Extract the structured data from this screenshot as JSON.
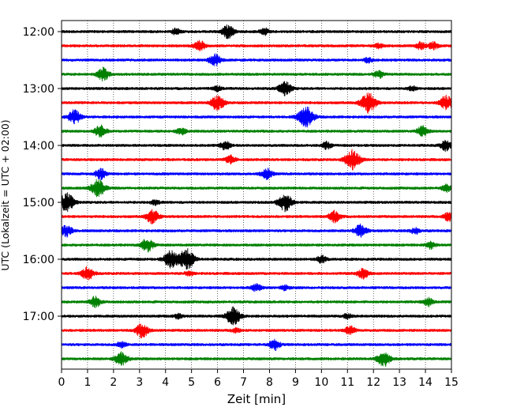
{
  "chart_data": {
    "type": "line",
    "subtype": "helicorder",
    "title": "",
    "xlabel": "Zeit  [min]",
    "ylabel": "UTC (Lokalzeit = UTC + 02:00)",
    "xlim": [
      0,
      15
    ],
    "x_ticks": [
      "0",
      "1",
      "2",
      "3",
      "4",
      "5",
      "6",
      "7",
      "8",
      "9",
      "10",
      "11",
      "12",
      "13",
      "14",
      "15"
    ],
    "y_ticks": [
      "12:00",
      "13:00",
      "14:00",
      "15:00",
      "16:00",
      "17:00"
    ],
    "grid": "vertical dotted",
    "trace_interval_min": 15,
    "trace_colors": [
      "#000000",
      "#ff0000",
      "#0000ff",
      "#008000"
    ],
    "traces": [
      {
        "start": "12:00",
        "events": [
          [
            4.4,
            0.25
          ],
          [
            6.4,
            0.55
          ],
          [
            7.8,
            0.3
          ]
        ]
      },
      {
        "start": "12:15",
        "events": [
          [
            5.3,
            0.45
          ],
          [
            12.2,
            0.2
          ],
          [
            13.8,
            0.3
          ],
          [
            14.3,
            0.3
          ]
        ]
      },
      {
        "start": "12:30",
        "events": [
          [
            5.9,
            0.5
          ],
          [
            11.8,
            0.2
          ]
        ]
      },
      {
        "start": "12:45",
        "events": [
          [
            1.6,
            0.55
          ],
          [
            12.2,
            0.3
          ]
        ]
      },
      {
        "start": "13:00",
        "events": [
          [
            8.6,
            0.6
          ],
          [
            6.0,
            0.2
          ],
          [
            13.5,
            0.2
          ]
        ]
      },
      {
        "start": "13:15",
        "events": [
          [
            6.0,
            0.65
          ],
          [
            11.8,
            0.85
          ],
          [
            14.8,
            0.6
          ]
        ]
      },
      {
        "start": "13:30",
        "events": [
          [
            0.5,
            0.6
          ],
          [
            9.4,
            0.9
          ]
        ]
      },
      {
        "start": "13:45",
        "events": [
          [
            1.5,
            0.5
          ],
          [
            4.6,
            0.3
          ],
          [
            13.9,
            0.45
          ]
        ]
      },
      {
        "start": "14:00",
        "events": [
          [
            6.3,
            0.35
          ],
          [
            10.2,
            0.3
          ],
          [
            14.8,
            0.45
          ]
        ]
      },
      {
        "start": "14:15",
        "events": [
          [
            6.5,
            0.35
          ],
          [
            11.2,
            0.85
          ]
        ]
      },
      {
        "start": "14:30",
        "events": [
          [
            1.5,
            0.45
          ],
          [
            7.9,
            0.45
          ]
        ]
      },
      {
        "start": "14:45",
        "events": [
          [
            1.4,
            0.75
          ],
          [
            14.8,
            0.3
          ]
        ]
      },
      {
        "start": "15:00",
        "events": [
          [
            0.2,
            0.8
          ],
          [
            8.6,
            0.75
          ],
          [
            3.6,
            0.2
          ]
        ]
      },
      {
        "start": "15:15",
        "events": [
          [
            3.5,
            0.6
          ],
          [
            10.5,
            0.5
          ],
          [
            14.9,
            0.4
          ]
        ]
      },
      {
        "start": "15:30",
        "events": [
          [
            0.2,
            0.5
          ],
          [
            11.5,
            0.55
          ],
          [
            13.6,
            0.25
          ]
        ]
      },
      {
        "start": "15:45",
        "events": [
          [
            3.3,
            0.55
          ],
          [
            14.2,
            0.3
          ]
        ]
      },
      {
        "start": "16:00",
        "events": [
          [
            4.2,
            0.7
          ],
          [
            4.8,
            0.9
          ],
          [
            10.0,
            0.3
          ]
        ]
      },
      {
        "start": "16:15",
        "events": [
          [
            1.0,
            0.55
          ],
          [
            11.6,
            0.45
          ],
          [
            4.9,
            0.2
          ]
        ]
      },
      {
        "start": "16:30",
        "events": [
          [
            7.5,
            0.3
          ],
          [
            8.6,
            0.2
          ]
        ]
      },
      {
        "start": "16:45",
        "events": [
          [
            1.3,
            0.45
          ],
          [
            14.1,
            0.35
          ]
        ]
      },
      {
        "start": "17:00",
        "events": [
          [
            6.6,
            0.75
          ],
          [
            4.5,
            0.2
          ],
          [
            11.0,
            0.2
          ]
        ]
      },
      {
        "start": "17:15",
        "events": [
          [
            3.1,
            0.6
          ],
          [
            11.1,
            0.35
          ],
          [
            6.7,
            0.2
          ]
        ]
      },
      {
        "start": "17:30",
        "events": [
          [
            8.2,
            0.45
          ],
          [
            2.3,
            0.25
          ]
        ]
      },
      {
        "start": "17:45",
        "events": [
          [
            2.3,
            0.6
          ],
          [
            12.4,
            0.65
          ]
        ]
      }
    ]
  }
}
